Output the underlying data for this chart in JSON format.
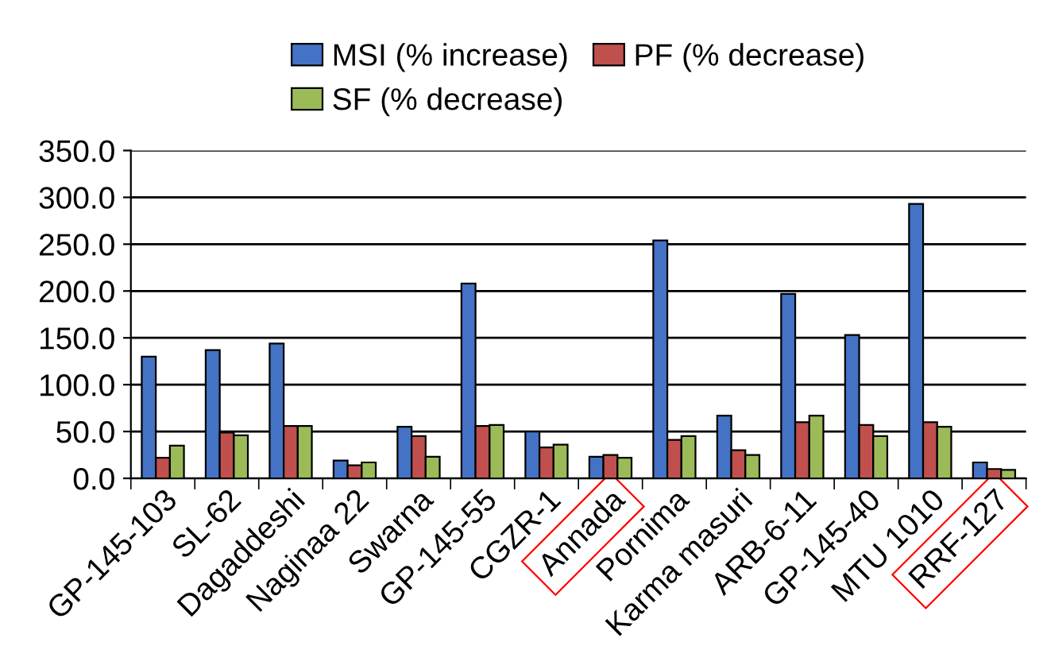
{
  "chart_data": {
    "type": "bar",
    "categories": [
      "GP-145-103",
      "SL-62",
      "Dagaddeshi",
      "Naginaa 22",
      "Swarna",
      "GP-145-55",
      "CGZR-1",
      "Annada",
      "Pornima",
      "Karma masuri",
      "ARB-6-11",
      "GP-145-40",
      "MTU 1010",
      "RRF-127"
    ],
    "series": [
      {
        "name": "MSI (% increase)",
        "color": "#4472c4",
        "values": [
          130,
          137,
          144,
          19,
          55,
          208,
          50,
          23,
          254,
          67,
          197,
          153,
          293,
          17
        ]
      },
      {
        "name": "PF (% decrease)",
        "color": "#c0504d",
        "values": [
          22,
          49,
          56,
          14,
          45,
          56,
          33,
          25,
          41,
          30,
          60,
          57,
          60,
          10
        ]
      },
      {
        "name": "SF (% decrease)",
        "color": "#9bbb59",
        "values": [
          35,
          46,
          56,
          17,
          23,
          57,
          36,
          22,
          45,
          25,
          67,
          45,
          55,
          9
        ]
      }
    ],
    "ylim": [
      0,
      350
    ],
    "yticks": [
      {
        "value": 0,
        "label": "0.0"
      },
      {
        "value": 50,
        "label": "50.0"
      },
      {
        "value": 100,
        "label": "100.0"
      },
      {
        "value": 150,
        "label": "150.0"
      },
      {
        "value": 200,
        "label": "200.0"
      },
      {
        "value": 250,
        "label": "250.0"
      },
      {
        "value": 300,
        "label": "300.0"
      },
      {
        "value": 350,
        "label": "350.0"
      }
    ],
    "grid": "y",
    "legend": "top"
  }
}
